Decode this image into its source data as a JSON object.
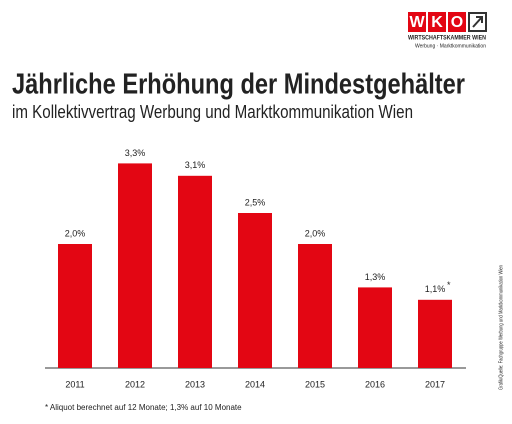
{
  "chart_data": {
    "type": "bar",
    "title": "Jährliche Erhöhung der Mindestgehälter",
    "subtitle": "im Kollektivvertrag Werbung und Marktkommunikation Wien",
    "categories": [
      "2011",
      "2012",
      "2013",
      "2014",
      "2015",
      "2016",
      "2017"
    ],
    "values": [
      2.0,
      3.3,
      3.1,
      2.5,
      2.0,
      1.3,
      1.1
    ],
    "value_labels": [
      "2,0%",
      "3,3%",
      "3,1%",
      "2,5%",
      "2,0%",
      "1,3%",
      "1,1%"
    ],
    "color": "#e30613",
    "marker": "*",
    "footnote": "* Aliquot berechnet auf 12 Monate; 1,3% auf 10 Monate",
    "source": "Grafik/Quelle: Fachgruppe Werbung und Marktkommunikation Wien",
    "logo": {
      "letters": [
        "W",
        "K",
        "O"
      ],
      "name": "WIRTSCHAFTSKAMMER WIEN",
      "division": "Werbung · Marktkommunikation"
    }
  }
}
